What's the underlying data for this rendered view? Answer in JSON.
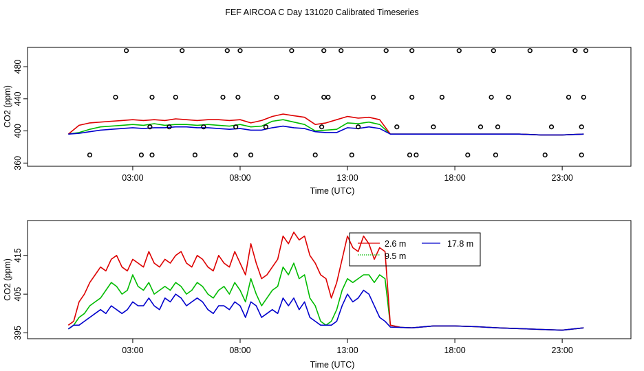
{
  "title": "FEF AIRCOA C  Day 131020  Calibrated Timeseries",
  "colors": {
    "c2_6": "#dd0000",
    "c9_5": "#00bb00",
    "c17_8": "#0000cc",
    "axis": "#000000"
  },
  "chart_data": [
    {
      "type": "line",
      "panel": "top",
      "xlabel": "Time (UTC)",
      "ylabel": "CO2 (ppm)",
      "xlim": [
        -1.9,
        26.2
      ],
      "ylim": [
        356,
        504
      ],
      "x_ticks": [
        3,
        8,
        13,
        18,
        23
      ],
      "x_tick_labels": [
        "03:00",
        "08:00",
        "13:00",
        "18:00",
        "23:00"
      ],
      "y_ticks": [
        360,
        400,
        440,
        480
      ],
      "y_tick_labels": [
        "360",
        "400",
        "440",
        "480"
      ],
      "series": [
        {
          "name": "2.6 m",
          "color": "#dd0000",
          "x": [
            0,
            0.5,
            1,
            1.5,
            2,
            2.5,
            3,
            3.5,
            4,
            4.5,
            5,
            5.5,
            6,
            6.5,
            7,
            7.5,
            8,
            8.5,
            9,
            9.5,
            10,
            10.5,
            11,
            11.5,
            12,
            12.5,
            13,
            13.5,
            14,
            14.5,
            15,
            15.5,
            16,
            17,
            18,
            19,
            20,
            21,
            22,
            23,
            24
          ],
          "values": [
            396,
            407,
            410,
            411,
            412,
            413,
            414,
            413,
            414,
            413,
            415,
            414,
            413,
            414,
            414,
            413,
            414,
            410,
            413,
            418,
            421,
            419,
            417,
            408,
            410,
            414,
            418,
            416,
            417,
            414,
            396,
            396,
            396,
            396,
            396,
            396,
            396,
            396,
            395,
            395,
            396
          ]
        },
        {
          "name": "9.5 m",
          "color": "#00bb00",
          "x": [
            0,
            0.5,
            1,
            1.5,
            2,
            2.5,
            3,
            3.5,
            4,
            4.5,
            5,
            5.5,
            6,
            6.5,
            7,
            7.5,
            8,
            8.5,
            9,
            9.5,
            10,
            10.5,
            11,
            11.5,
            12,
            12.5,
            13,
            13.5,
            14,
            14.5,
            15,
            15.5,
            16,
            17,
            18,
            19,
            20,
            21,
            22,
            23,
            24
          ],
          "values": [
            396,
            398,
            402,
            405,
            406,
            407,
            408,
            407,
            409,
            407,
            408,
            408,
            407,
            408,
            407,
            406,
            408,
            405,
            406,
            412,
            414,
            411,
            408,
            400,
            401,
            402,
            410,
            409,
            411,
            408,
            396,
            396,
            396,
            396,
            396,
            396,
            396,
            396,
            395,
            395,
            396
          ]
        },
        {
          "name": "17.8 m",
          "color": "#0000cc",
          "x": [
            0,
            0.5,
            1,
            1.5,
            2,
            2.5,
            3,
            3.5,
            4,
            4.5,
            5,
            5.5,
            6,
            6.5,
            7,
            7.5,
            8,
            8.5,
            9,
            9.5,
            10,
            10.5,
            11,
            11.5,
            12,
            12.5,
            13,
            13.5,
            14,
            14.5,
            15,
            15.5,
            16,
            17,
            18,
            19,
            20,
            21,
            22,
            23,
            24
          ],
          "values": [
            396,
            397,
            399,
            401,
            402,
            403,
            404,
            403,
            404,
            404,
            405,
            405,
            404,
            404,
            403,
            402,
            403,
            401,
            401,
            404,
            406,
            404,
            403,
            399,
            398,
            398,
            404,
            403,
            405,
            403,
            396,
            396,
            396,
            396,
            396,
            396,
            396,
            396,
            395,
            395,
            396
          ]
        }
      ],
      "markers": {
        "name": "flag markers",
        "x": [
          1.0,
          2.2,
          2.7,
          3.4,
          3.8,
          3.9,
          3.9,
          4.7,
          5.0,
          5.3,
          5.9,
          6.3,
          7.2,
          7.4,
          7.8,
          7.8,
          7.9,
          8.0,
          8.5,
          9.2,
          9.7,
          10.4,
          11.5,
          11.8,
          11.9,
          11.9,
          12.1,
          12.7,
          13.2,
          13.5,
          14.2,
          14.8,
          15.3,
          15.9,
          16.0,
          16.0,
          16.2,
          17.0,
          17.4,
          18.2,
          18.6,
          19.2,
          19.7,
          19.8,
          19.9,
          20.0,
          20.5,
          21.5,
          22.2,
          22.5,
          23.3,
          23.6,
          23.9,
          23.9,
          24.0,
          24.1
        ],
        "values": [
          370,
          442,
          500,
          370,
          405,
          370,
          442,
          405,
          442,
          500,
          370,
          405,
          442,
          500,
          405,
          370,
          442,
          500,
          370,
          405,
          442,
          500,
          370,
          405,
          442,
          500,
          442,
          500,
          370,
          405,
          442,
          500,
          405,
          370,
          442,
          500,
          370,
          405,
          442,
          500,
          370,
          405,
          442,
          500,
          370,
          405,
          442,
          500,
          370,
          405,
          442,
          500,
          405,
          370,
          442,
          500
        ]
      }
    },
    {
      "type": "line",
      "panel": "bottom",
      "xlabel": "Time (UTC)",
      "ylabel": "CO2 (ppm)",
      "xlim": [
        -1.9,
        26.2
      ],
      "ylim": [
        393.5,
        424
      ],
      "x_ticks": [
        3,
        8,
        13,
        18,
        23
      ],
      "x_tick_labels": [
        "03:00",
        "08:00",
        "13:00",
        "18:00",
        "23:00"
      ],
      "y_ticks": [
        395,
        405,
        415
      ],
      "y_tick_labels": [
        "395",
        "405",
        "415"
      ],
      "legend": {
        "position": "top-right",
        "entries": [
          "2.6 m",
          "9.5 m",
          "17.8 m"
        ]
      },
      "series": [
        {
          "name": "2.6 m",
          "color": "#dd0000",
          "x": [
            0,
            0.25,
            0.5,
            0.75,
            1,
            1.25,
            1.5,
            1.75,
            2,
            2.25,
            2.5,
            2.75,
            3,
            3.25,
            3.5,
            3.75,
            4,
            4.25,
            4.5,
            4.75,
            5,
            5.25,
            5.5,
            5.75,
            6,
            6.25,
            6.5,
            6.75,
            7,
            7.25,
            7.5,
            7.75,
            8,
            8.25,
            8.5,
            8.75,
            9,
            9.25,
            9.5,
            9.75,
            10,
            10.25,
            10.5,
            10.75,
            11,
            11.25,
            11.5,
            11.75,
            12,
            12.25,
            12.5,
            12.75,
            13,
            13.25,
            13.5,
            13.75,
            14,
            14.25,
            14.5,
            14.75,
            15,
            15.5,
            16,
            17,
            18,
            19,
            20,
            21,
            22,
            23,
            24
          ],
          "values": [
            397,
            398,
            403,
            405,
            408,
            410,
            412,
            411,
            414,
            415,
            412,
            411,
            414,
            413,
            412,
            416,
            413,
            412,
            414,
            413,
            415,
            416,
            413,
            412,
            415,
            414,
            412,
            411,
            415,
            413,
            412,
            416,
            413,
            410,
            418,
            413,
            409,
            410,
            412,
            414,
            420,
            418,
            421,
            419,
            420,
            415,
            413,
            410,
            409,
            404,
            408,
            414,
            420,
            417,
            416,
            420,
            418,
            414,
            417,
            416,
            397,
            396.4,
            396.3,
            396.8,
            396.8,
            396.6,
            396.3,
            396.1,
            395.9,
            395.7,
            396.3
          ]
        },
        {
          "name": "9.5 m",
          "color": "#00bb00",
          "x": [
            0,
            0.25,
            0.5,
            0.75,
            1,
            1.25,
            1.5,
            1.75,
            2,
            2.25,
            2.5,
            2.75,
            3,
            3.25,
            3.5,
            3.75,
            4,
            4.25,
            4.5,
            4.75,
            5,
            5.25,
            5.5,
            5.75,
            6,
            6.25,
            6.5,
            6.75,
            7,
            7.25,
            7.5,
            7.75,
            8,
            8.25,
            8.5,
            8.75,
            9,
            9.25,
            9.5,
            9.75,
            10,
            10.25,
            10.5,
            10.75,
            11,
            11.25,
            11.5,
            11.75,
            12,
            12.25,
            12.5,
            12.75,
            13,
            13.25,
            13.5,
            13.75,
            14,
            14.25,
            14.5,
            14.75,
            15,
            15.5,
            16,
            17,
            18,
            19,
            20,
            21,
            22,
            23,
            24
          ],
          "values": [
            396,
            397,
            399,
            400,
            402,
            403,
            404,
            406,
            408,
            407,
            405,
            406,
            410,
            407,
            406,
            408,
            405,
            406,
            407,
            406,
            408,
            407,
            405,
            406,
            408,
            407,
            405,
            404,
            406,
            407,
            405,
            408,
            406,
            403,
            409,
            405,
            402,
            404,
            406,
            407,
            412,
            410,
            413,
            409,
            410,
            404,
            402,
            398,
            397,
            398,
            401,
            406,
            409,
            408,
            409,
            410,
            410,
            408,
            410,
            409,
            397,
            396.4,
            396.3,
            396.8,
            396.8,
            396.6,
            396.3,
            396.1,
            395.9,
            395.7,
            396.3
          ]
        },
        {
          "name": "17.8 m",
          "color": "#0000cc",
          "x": [
            0,
            0.25,
            0.5,
            0.75,
            1,
            1.25,
            1.5,
            1.75,
            2,
            2.25,
            2.5,
            2.75,
            3,
            3.25,
            3.5,
            3.75,
            4,
            4.25,
            4.5,
            4.75,
            5,
            5.25,
            5.5,
            5.75,
            6,
            6.25,
            6.5,
            6.75,
            7,
            7.25,
            7.5,
            7.75,
            8,
            8.25,
            8.5,
            8.75,
            9,
            9.25,
            9.5,
            9.75,
            10,
            10.25,
            10.5,
            10.75,
            11,
            11.25,
            11.5,
            11.75,
            12,
            12.25,
            12.5,
            12.75,
            13,
            13.25,
            13.5,
            13.75,
            14,
            14.25,
            14.5,
            14.75,
            15,
            15.5,
            16,
            17,
            18,
            19,
            20,
            21,
            22,
            23,
            24
          ],
          "values": [
            396,
            397,
            397,
            398,
            399,
            400,
            401,
            400,
            402,
            401,
            400,
            401,
            403,
            402,
            402,
            404,
            402,
            401,
            404,
            403,
            405,
            404,
            402,
            403,
            404,
            403,
            401,
            400,
            402,
            402,
            401,
            403,
            402,
            399,
            403,
            402,
            399,
            400,
            401,
            400,
            404,
            402,
            404,
            401,
            403,
            399,
            398,
            397,
            397,
            397,
            398,
            402,
            405,
            403,
            404,
            406,
            405,
            402,
            399,
            398,
            396.5,
            396.4,
            396.3,
            396.8,
            396.8,
            396.6,
            396.3,
            396.1,
            395.9,
            395.7,
            396.3
          ]
        }
      ]
    }
  ]
}
